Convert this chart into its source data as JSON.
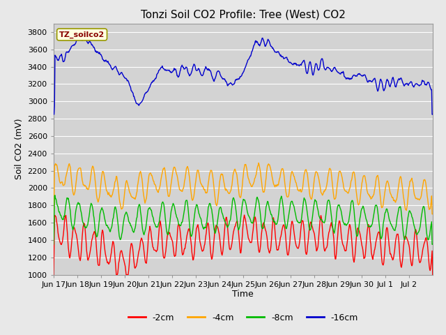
{
  "title": "Tonzi Soil CO2 Profile: Tree (West) CO2",
  "ylabel": "Soil CO2 (mV)",
  "xlabel": "Time",
  "legend_label": "TZ_soilco2",
  "series_labels": [
    "-2cm",
    "-4cm",
    "-8cm",
    "-16cm"
  ],
  "series_colors": [
    "#ff0000",
    "#ffa500",
    "#00bb00",
    "#0000cc"
  ],
  "ylim": [
    1000,
    3900
  ],
  "yticks": [
    1000,
    1200,
    1400,
    1600,
    1800,
    2000,
    2200,
    2400,
    2600,
    2800,
    3000,
    3200,
    3400,
    3600,
    3800
  ],
  "xtick_labels": [
    "Jun 17",
    "Jun 18",
    "Jun 19",
    "Jun 20",
    "Jun 21",
    "Jun 22",
    "Jun 23",
    "Jun 24",
    "Jun 25",
    "Jun 26",
    "Jun 27",
    "Jun 28",
    "Jun 29",
    "Jun 30",
    "Jul 1",
    "Jul 2"
  ],
  "bg_color": "#e8e8e8",
  "plot_bg_color": "#d3d3d3",
  "grid_color": "#ffffff",
  "title_fontsize": 11,
  "axis_fontsize": 9,
  "tick_fontsize": 8,
  "legend_box_facecolor": "#ffffe0",
  "legend_box_edgecolor": "#999900",
  "legend_text_color": "#880000",
  "linewidth": 1.0
}
